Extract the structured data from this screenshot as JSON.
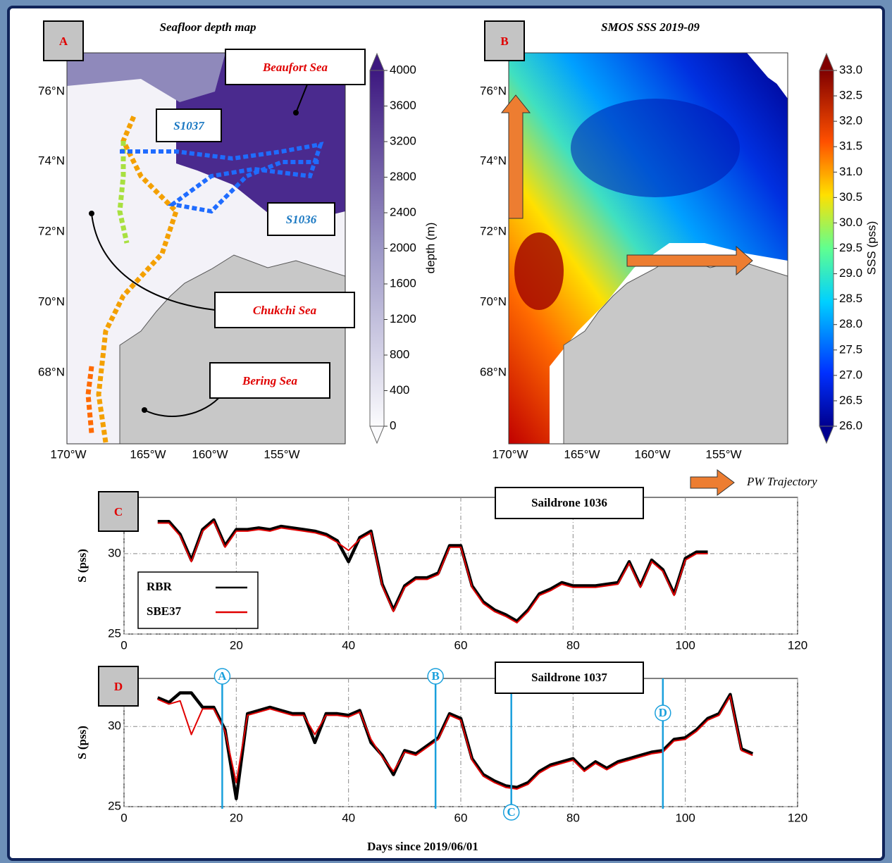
{
  "maps": [
    {
      "label": "A",
      "title": "Seafloor depth map",
      "lat_labels": [
        "76°N",
        "74°N",
        "72°N",
        "70°N",
        "68°N"
      ],
      "lon_labels": [
        "170°W",
        "165°W",
        "160°W",
        "155°W"
      ],
      "colorbar": {
        "label": "depth (m)",
        "lim": [
          0,
          4000
        ],
        "ticks": [
          4000,
          3600,
          3200,
          2800,
          2400,
          2000,
          1600,
          1200,
          800,
          400,
          0
        ]
      },
      "annotations": [
        "Beaufort Sea",
        "S1037",
        "S1036",
        "Chukchi Sea",
        "Bering Sea"
      ]
    },
    {
      "label": "B",
      "title": "SMOS SSS 2019-09",
      "lat_labels": [
        "76°N",
        "74°N",
        "72°N",
        "70°N",
        "68°N"
      ],
      "lon_labels": [
        "170°W",
        "165°W",
        "160°W",
        "155°W"
      ],
      "colorbar": {
        "label": "SSS (pss)",
        "lim": [
          26,
          33
        ],
        "ticks": [
          {
            "value": 33,
            "label": "33.0"
          },
          32.5,
          {
            "value": 32,
            "label": "32.0"
          },
          31.5,
          {
            "value": 31,
            "label": "31.0"
          },
          30.5,
          {
            "value": 30,
            "label": "30.0"
          },
          29.5,
          {
            "value": 29,
            "label": "29.0"
          },
          28.5,
          {
            "value": 28,
            "label": "28.0"
          },
          27.5,
          {
            "value": 27,
            "label": "27.0"
          },
          26.5,
          {
            "value": 26,
            "label": "26.0"
          }
        ]
      },
      "legend": "PW Trajectory"
    }
  ],
  "chart_data": [
    {
      "type": "line",
      "panel_label": "C",
      "title": "Saildrone 1036",
      "ylabel": "S (pss)",
      "x": [
        6,
        8,
        10,
        12,
        14,
        16,
        18,
        20,
        22,
        24,
        26,
        28,
        30,
        32,
        34,
        36,
        38,
        40,
        42,
        44,
        46,
        48,
        50,
        52,
        54,
        56,
        58,
        60,
        62,
        64,
        66,
        68,
        70,
        72,
        74,
        76,
        78,
        80,
        82,
        84,
        86,
        88,
        90,
        92,
        94,
        96,
        98,
        100,
        102,
        104
      ],
      "series": [
        {
          "name": "RBR",
          "color": "#000000",
          "values": [
            32.0,
            32.0,
            31.2,
            29.6,
            31.5,
            32.1,
            30.5,
            31.5,
            31.5,
            31.6,
            31.5,
            31.7,
            31.6,
            31.5,
            31.4,
            31.2,
            30.8,
            29.5,
            31.0,
            31.4,
            28.1,
            26.5,
            28.0,
            28.5,
            28.5,
            28.8,
            30.5,
            30.5,
            28.0,
            27.0,
            26.5,
            26.2,
            25.8,
            26.5,
            27.5,
            27.8,
            28.2,
            28.0,
            28.0,
            28.0,
            28.1,
            28.2,
            29.5,
            28.0,
            29.6,
            29.0,
            27.5,
            29.7,
            30.1,
            30.1
          ]
        },
        {
          "name": "SBE37",
          "color": "#e00000",
          "values": [
            31.9,
            31.9,
            31.1,
            29.5,
            31.4,
            32.0,
            30.4,
            31.4,
            31.4,
            31.5,
            31.4,
            31.6,
            31.5,
            31.4,
            31.3,
            31.1,
            30.7,
            30.2,
            30.9,
            31.3,
            28.0,
            26.4,
            27.9,
            28.4,
            28.4,
            28.7,
            30.4,
            30.4,
            27.9,
            26.9,
            26.4,
            26.1,
            25.7,
            26.4,
            27.4,
            27.7,
            28.1,
            27.9,
            27.9,
            27.9,
            28.0,
            28.1,
            29.4,
            27.9,
            29.5,
            28.9,
            27.4,
            29.6,
            30.0,
            30.0
          ]
        }
      ],
      "xlim": [
        0,
        120
      ],
      "xticks": [
        0,
        20,
        40,
        60,
        80,
        100,
        120
      ],
      "ylim": [
        25,
        33.5
      ],
      "yticks": [
        25,
        30
      ],
      "grid": true,
      "legend": "lower left"
    },
    {
      "type": "line",
      "panel_label": "D",
      "title": "Saildrone 1037",
      "ylabel": "S (pss)",
      "xlabel": "Days since 2019/06/01",
      "x": [
        6,
        8,
        10,
        12,
        14,
        16,
        18,
        20,
        22,
        24,
        26,
        28,
        30,
        32,
        34,
        36,
        38,
        40,
        42,
        44,
        46,
        48,
        50,
        52,
        54,
        56,
        58,
        60,
        62,
        64,
        66,
        68,
        70,
        72,
        74,
        76,
        78,
        80,
        82,
        84,
        86,
        88,
        90,
        92,
        94,
        96,
        98,
        100,
        102,
        104,
        106,
        108,
        110,
        112
      ],
      "series": [
        {
          "color": "#000000",
          "values": [
            31.8,
            31.5,
            32.1,
            32.1,
            31.2,
            31.2,
            29.8,
            25.5,
            30.8,
            31.0,
            31.2,
            31.0,
            30.8,
            30.8,
            29.0,
            30.8,
            30.8,
            30.7,
            31.0,
            29.0,
            28.2,
            27.0,
            28.5,
            28.3,
            28.8,
            29.3,
            30.8,
            30.5,
            28.0,
            27.0,
            26.6,
            26.3,
            26.2,
            26.5,
            27.2,
            27.6,
            27.8,
            28.0,
            27.3,
            27.8,
            27.4,
            27.8,
            28.0,
            28.2,
            28.4,
            28.5,
            29.2,
            29.3,
            29.8,
            30.5,
            30.8,
            32.0,
            28.6,
            28.3
          ]
        },
        {
          "color": "#e00000",
          "values": [
            31.7,
            31.4,
            31.6,
            29.5,
            31.1,
            31.1,
            29.7,
            26.5,
            30.7,
            30.9,
            31.1,
            30.9,
            30.7,
            30.7,
            29.5,
            30.7,
            30.7,
            30.6,
            30.9,
            29.2,
            28.1,
            27.2,
            28.4,
            28.2,
            28.7,
            29.2,
            30.7,
            30.4,
            27.9,
            26.9,
            26.5,
            26.2,
            26.1,
            26.4,
            27.1,
            27.5,
            27.7,
            27.9,
            27.2,
            27.7,
            27.3,
            27.7,
            27.9,
            28.1,
            28.3,
            28.4,
            29.1,
            29.2,
            29.7,
            30.4,
            30.7,
            31.9,
            28.5,
            28.2
          ]
        }
      ],
      "markers": [
        {
          "label": "A",
          "x": 17.5
        },
        {
          "label": "B",
          "x": 55.5
        },
        {
          "label": "C",
          "x": 69
        },
        {
          "label": "D",
          "x": 96
        }
      ],
      "xlim": [
        0,
        120
      ],
      "xticks": [
        0,
        20,
        40,
        60,
        80,
        100,
        120
      ],
      "ylim": [
        25,
        33
      ],
      "yticks": [
        25,
        30
      ],
      "grid": true
    }
  ]
}
